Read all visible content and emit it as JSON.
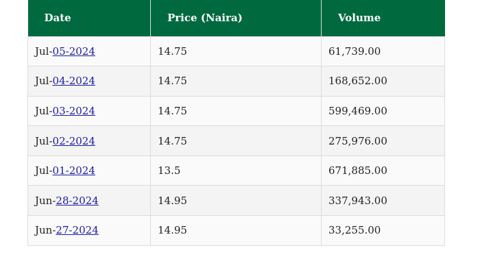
{
  "table": {
    "headers": [
      "Date",
      "Price (Naira)",
      "Volume"
    ],
    "rows": [
      {
        "date_prefix": "Jul-",
        "date_link": "05-2024",
        "price": "14.75",
        "volume": "61,739.00"
      },
      {
        "date_prefix": "Jul-",
        "date_link": "04-2024",
        "price": "14.75",
        "volume": "168,652.00"
      },
      {
        "date_prefix": "Jul-",
        "date_link": "03-2024",
        "price": "14.75",
        "volume": "599,469.00"
      },
      {
        "date_prefix": "Jul-",
        "date_link": "02-2024",
        "price": "14.75",
        "volume": "275,976.00"
      },
      {
        "date_prefix": "Jul-",
        "date_link": "01-2024",
        "price": "13.5",
        "volume": "671,885.00"
      },
      {
        "date_prefix": "Jun-",
        "date_link": "28-2024",
        "price": "14.95",
        "volume": "337,943.00"
      },
      {
        "date_prefix": "Jun-",
        "date_link": "27-2024",
        "price": "14.95",
        "volume": "33,255.00"
      }
    ]
  },
  "colors": {
    "header_bg": "#006a3e",
    "header_text": "#ffffff",
    "link": "#1a1aa6"
  }
}
